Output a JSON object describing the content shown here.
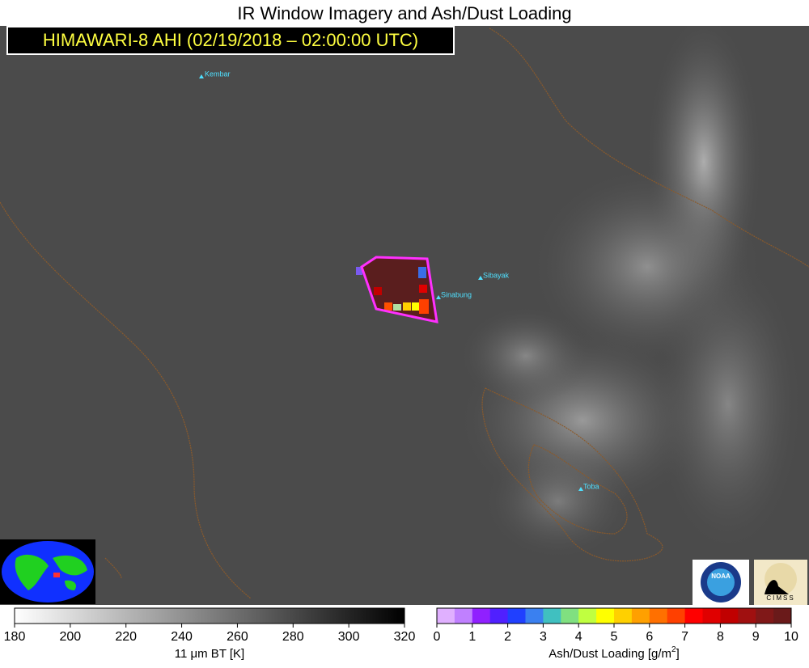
{
  "title": "IR Window Imagery and Ash/Dust Loading",
  "subtitle": "HIMAWARI-8 AHI (02/19/2018 – 02:00:00 UTC)",
  "volcanoes": [
    {
      "label": "Kembar"
    },
    {
      "label": "Sibayak"
    },
    {
      "label": "Sinabung"
    },
    {
      "label": "Toba"
    }
  ],
  "logos": {
    "noaa": "NOAA",
    "cimss": "CIMSS"
  },
  "colorbars": {
    "bt": {
      "ticks": [
        180,
        200,
        220,
        240,
        260,
        280,
        300,
        320
      ],
      "label": "11 μm BT [K]"
    },
    "ash": {
      "ticks": [
        0,
        1,
        2,
        3,
        4,
        5,
        6,
        7,
        8,
        9,
        10
      ],
      "label": "Ash/Dust Loading [g/m",
      "label_sup": "2",
      "label_end": "]"
    }
  }
}
